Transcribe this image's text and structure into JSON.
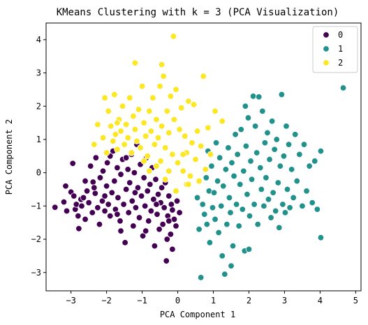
{
  "chart_data": {
    "type": "scatter",
    "title": "KMeans Clustering with k = 3 (PCA Visualization)",
    "xlabel": "PCA Component 1",
    "ylabel": "PCA Component 2",
    "xlim": [
      -3.7,
      5.15
    ],
    "ylim": [
      -3.55,
      4.5
    ],
    "xticks": [
      -3,
      -2,
      -1,
      0,
      1,
      2,
      3,
      4,
      5
    ],
    "yticks": [
      -3,
      -2,
      -1,
      0,
      1,
      2,
      3,
      4
    ],
    "grid": false,
    "legend_position": "top-right",
    "marker_edge_color": "#ffffff",
    "series": [
      {
        "name": "0",
        "color": "#440154",
        "points": [
          [
            -3.45,
            -1.04
          ],
          [
            -3.2,
            -0.88
          ],
          [
            -3.15,
            -0.4
          ],
          [
            -3.12,
            -1.15
          ],
          [
            -3.0,
            -0.58
          ],
          [
            -2.95,
            0.28
          ],
          [
            -2.92,
            -0.7
          ],
          [
            -2.88,
            -1.1
          ],
          [
            -2.85,
            -0.95
          ],
          [
            -2.8,
            -1.3
          ],
          [
            -2.78,
            -1.68
          ],
          [
            -2.72,
            -0.8
          ],
          [
            -2.7,
            -1.0
          ],
          [
            -2.65,
            -0.75
          ],
          [
            -2.6,
            -1.4
          ],
          [
            -2.55,
            -0.55
          ],
          [
            -2.5,
            -0.9
          ],
          [
            -2.45,
            0.2
          ],
          [
            -2.4,
            -1.2
          ],
          [
            -2.38,
            -0.28
          ],
          [
            -2.32,
            -0.62
          ],
          [
            -2.3,
            0.45
          ],
          [
            -2.25,
            -1.05
          ],
          [
            -2.2,
            -1.55
          ],
          [
            -2.18,
            -0.15
          ],
          [
            -2.12,
            -0.85
          ],
          [
            -2.1,
            0.05
          ],
          [
            -2.05,
            -1.15
          ],
          [
            -2.0,
            -0.4
          ],
          [
            -1.98,
            0.3
          ],
          [
            -1.95,
            -0.95
          ],
          [
            -1.9,
            -1.3
          ],
          [
            -1.85,
            -0.6
          ],
          [
            -1.82,
            0.65
          ],
          [
            -1.78,
            -0.25
          ],
          [
            -1.75,
            -1.1
          ],
          [
            -1.7,
            0.15
          ],
          [
            -1.68,
            -0.75
          ],
          [
            -1.62,
            -1.45
          ],
          [
            -1.6,
            -0.05
          ],
          [
            -1.55,
            0.4
          ],
          [
            -1.52,
            -0.95
          ],
          [
            -1.48,
            -2.1
          ],
          [
            -1.45,
            -0.5
          ],
          [
            -1.4,
            0.1
          ],
          [
            -1.38,
            -1.2
          ],
          [
            -1.35,
            -0.3
          ],
          [
            -1.3,
            0.55
          ],
          [
            -1.28,
            -0.85
          ],
          [
            -1.25,
            -1.6
          ],
          [
            -1.22,
            0.0
          ],
          [
            -1.18,
            -1.05
          ],
          [
            -1.15,
            0.85
          ],
          [
            -1.12,
            -0.45
          ],
          [
            -1.08,
            -1.35
          ],
          [
            -1.05,
            0.25
          ],
          [
            -1.02,
            -0.7
          ],
          [
            -0.98,
            -1.9
          ],
          [
            -0.95,
            -0.15
          ],
          [
            -0.92,
            -1.0
          ],
          [
            -0.88,
            0.45
          ],
          [
            -0.85,
            -0.55
          ],
          [
            -0.82,
            -1.45
          ],
          [
            -0.78,
            -0.35
          ],
          [
            -0.75,
            -1.15
          ],
          [
            -0.72,
            0.15
          ],
          [
            -0.68,
            -0.8
          ],
          [
            -0.65,
            -2.2
          ],
          [
            -0.62,
            -0.2
          ],
          [
            -0.58,
            -1.25
          ],
          [
            -0.55,
            -0.65
          ],
          [
            -0.52,
            -1.7
          ],
          [
            -0.48,
            -0.9
          ],
          [
            -0.45,
            -0.45
          ],
          [
            -0.42,
            -1.55
          ],
          [
            -0.38,
            -1.05
          ],
          [
            -0.35,
            -0.3
          ],
          [
            -0.3,
            -2.0
          ],
          [
            -0.28,
            -1.3
          ],
          [
            -0.25,
            -0.7
          ],
          [
            -0.2,
            -1.85
          ],
          [
            -0.18,
            -0.95
          ],
          [
            -0.15,
            -2.3
          ],
          [
            -0.1,
            -1.4
          ],
          [
            -0.05,
            -1.6
          ],
          [
            -0.02,
            -0.85
          ],
          [
            0.05,
            -1.2
          ],
          [
            -0.25,
            -1.45
          ],
          [
            -1.6,
            -1.75
          ],
          [
            -2.35,
            -0.45
          ],
          [
            -1.2,
            -0.6
          ],
          [
            -0.6,
            -0.95
          ],
          [
            -1.9,
            0.5
          ],
          [
            -2.05,
            -0.7
          ],
          [
            -0.9,
            -1.75
          ],
          [
            -0.32,
            -2.65
          ],
          [
            -1.45,
            0.45
          ],
          [
            -2.6,
            -0.25
          ],
          [
            -1.7,
            -1.25
          ],
          [
            -0.15,
            -1.12
          ]
        ]
      },
      {
        "name": "1",
        "color": "#21918c",
        "points": [
          [
            0.55,
            -0.75
          ],
          [
            0.6,
            -1.7
          ],
          [
            0.65,
            -3.15
          ],
          [
            0.7,
            -0.95
          ],
          [
            0.75,
            -1.25
          ],
          [
            0.8,
            -0.15
          ],
          [
            0.82,
            -1.55
          ],
          [
            0.85,
            0.65
          ],
          [
            0.88,
            -0.55
          ],
          [
            0.9,
            -2.1
          ],
          [
            0.95,
            0.2
          ],
          [
            0.98,
            -1.05
          ],
          [
            1.02,
            -0.6
          ],
          [
            1.05,
            -1.4
          ],
          [
            1.08,
            0.9
          ],
          [
            1.12,
            -0.25
          ],
          [
            1.15,
            -1.8
          ],
          [
            1.18,
            0.45
          ],
          [
            1.22,
            -1.0
          ],
          [
            1.25,
            -2.5
          ],
          [
            1.28,
            -0.4
          ],
          [
            1.32,
            -3.05
          ],
          [
            1.35,
            0.1
          ],
          [
            1.38,
            -1.55
          ],
          [
            1.42,
            0.75
          ],
          [
            1.45,
            -0.75
          ],
          [
            1.48,
            -1.2
          ],
          [
            1.52,
            0.3
          ],
          [
            1.55,
            -2.2
          ],
          [
            1.58,
            -0.1
          ],
          [
            1.62,
            1.15
          ],
          [
            1.65,
            -0.95
          ],
          [
            1.68,
            0.55
          ],
          [
            1.72,
            -1.6
          ],
          [
            1.75,
            -0.35
          ],
          [
            1.78,
            1.3
          ],
          [
            1.82,
            -1.1
          ],
          [
            1.85,
            0.05
          ],
          [
            1.88,
            -2.35
          ],
          [
            1.92,
            0.8
          ],
          [
            1.95,
            -0.65
          ],
          [
            1.98,
            1.65
          ],
          [
            2.02,
            -1.3
          ],
          [
            2.05,
            0.35
          ],
          [
            2.08,
            -0.2
          ],
          [
            2.12,
            2.3
          ],
          [
            2.15,
            -0.95
          ],
          [
            2.18,
            1.4
          ],
          [
            2.22,
            0.6
          ],
          [
            2.25,
            -1.55
          ],
          [
            2.28,
            2.28
          ],
          [
            2.32,
            0.15
          ],
          [
            2.35,
            -0.5
          ],
          [
            2.38,
            1.85
          ],
          [
            2.42,
            -1.0
          ],
          [
            2.45,
            0.9
          ],
          [
            2.48,
            -0.15
          ],
          [
            2.52,
            1.2
          ],
          [
            2.55,
            -0.8
          ],
          [
            2.58,
            0.4
          ],
          [
            2.62,
            -1.35
          ],
          [
            2.65,
            1.55
          ],
          [
            2.68,
            -0.6
          ],
          [
            2.72,
            0.7
          ],
          [
            2.75,
            -1.15
          ],
          [
            2.78,
            1.0
          ],
          [
            2.82,
            -0.3
          ],
          [
            2.85,
            -1.65
          ],
          [
            2.88,
            0.2
          ],
          [
            2.92,
            2.35
          ],
          [
            2.95,
            -0.95
          ],
          [
            2.98,
            0.5
          ],
          [
            3.02,
            -1.2
          ],
          [
            3.05,
            1.4
          ],
          [
            3.08,
            -0.5
          ],
          [
            3.12,
            0.85
          ],
          [
            3.15,
            -1.05
          ],
          [
            3.2,
            0.1
          ],
          [
            3.25,
            -0.75
          ],
          [
            3.3,
            1.15
          ],
          [
            3.35,
            -0.25
          ],
          [
            3.42,
            0.55
          ],
          [
            3.5,
            -1.0
          ],
          [
            3.55,
            0.85
          ],
          [
            3.62,
            -0.55
          ],
          [
            3.7,
            0.2
          ],
          [
            3.78,
            -0.9
          ],
          [
            3.85,
            0.35
          ],
          [
            3.92,
            -1.1
          ],
          [
            4.02,
            0.65
          ],
          [
            4.02,
            -1.95
          ],
          [
            4.65,
            2.55
          ],
          [
            1.5,
            -2.8
          ],
          [
            2.0,
            -2.3
          ],
          [
            1.9,
            2.0
          ]
        ]
      },
      {
        "name": "2",
        "color": "#fde725",
        "points": [
          [
            -2.35,
            0.85
          ],
          [
            -2.25,
            1.45
          ],
          [
            -2.1,
            1.05
          ],
          [
            -2.05,
            2.25
          ],
          [
            -2.0,
            0.6
          ],
          [
            -1.95,
            1.85
          ],
          [
            -1.88,
            1.4
          ],
          [
            -1.82,
            0.95
          ],
          [
            -1.78,
            2.35
          ],
          [
            -1.75,
            1.15
          ],
          [
            -1.7,
            0.7
          ],
          [
            -1.65,
            1.6
          ],
          [
            -1.6,
            1.25
          ],
          [
            -1.55,
            2.0
          ],
          [
            -1.5,
            0.85
          ],
          [
            -1.45,
            1.45
          ],
          [
            -1.4,
            1.05
          ],
          [
            -1.35,
            2.25
          ],
          [
            -1.3,
            0.6
          ],
          [
            -1.25,
            1.7
          ],
          [
            -1.2,
            1.3
          ],
          [
            -1.15,
            0.95
          ],
          [
            -1.1,
            1.9
          ],
          [
            -1.05,
            0.75
          ],
          [
            -1.0,
            2.6
          ],
          [
            -0.95,
            1.5
          ],
          [
            -0.9,
            1.1
          ],
          [
            -0.85,
            0.5
          ],
          [
            -0.8,
            1.85
          ],
          [
            -0.75,
            1.25
          ],
          [
            -0.7,
            2.25
          ],
          [
            -0.65,
            0.85
          ],
          [
            -0.6,
            1.6
          ],
          [
            -0.55,
            1.05
          ],
          [
            -0.5,
            2.6
          ],
          [
            -0.48,
            0.35
          ],
          [
            -0.45,
            1.4
          ],
          [
            -0.4,
            2.9
          ],
          [
            -0.35,
            0.75
          ],
          [
            -0.3,
            1.85
          ],
          [
            -0.25,
            1.2
          ],
          [
            -0.2,
            2.3
          ],
          [
            -0.15,
            0.55
          ],
          [
            -0.12,
            4.1
          ],
          [
            -0.1,
            1.6
          ],
          [
            -0.05,
            2.5
          ],
          [
            0.0,
            0.3
          ],
          [
            0.05,
            1.3
          ],
          [
            0.1,
            1.95
          ],
          [
            0.15,
            0.05
          ],
          [
            0.2,
            1.1
          ],
          [
            0.25,
            0.6
          ],
          [
            0.3,
            2.15
          ],
          [
            0.35,
            -0.1
          ],
          [
            0.4,
            0.9
          ],
          [
            0.45,
            2.05
          ],
          [
            0.5,
            0.4
          ],
          [
            0.55,
            1.25
          ],
          [
            0.6,
            -0.25
          ],
          [
            0.65,
            0.8
          ],
          [
            0.72,
            2.9
          ],
          [
            0.78,
            0.1
          ],
          [
            0.85,
            1.35
          ],
          [
            0.92,
            0.55
          ],
          [
            1.05,
            1.85
          ],
          [
            1.25,
            1.55
          ],
          [
            -0.25,
            0.05
          ],
          [
            -0.6,
            0.2
          ],
          [
            -1.2,
            3.3
          ],
          [
            -0.45,
            3.25
          ],
          [
            0.25,
            -0.35
          ],
          [
            -0.8,
            0.05
          ],
          [
            -0.05,
            -0.55
          ],
          [
            0.15,
            0.55
          ],
          [
            -0.35,
            -0.2
          ],
          [
            0.3,
            -0.35
          ],
          [
            -1.7,
            1.5
          ],
          [
            -0.95,
            0.35
          ]
        ]
      }
    ]
  },
  "legend": {
    "entries": [
      {
        "label": "0",
        "color": "#440154"
      },
      {
        "label": "1",
        "color": "#21918c"
      },
      {
        "label": "2",
        "color": "#fde725"
      }
    ]
  }
}
